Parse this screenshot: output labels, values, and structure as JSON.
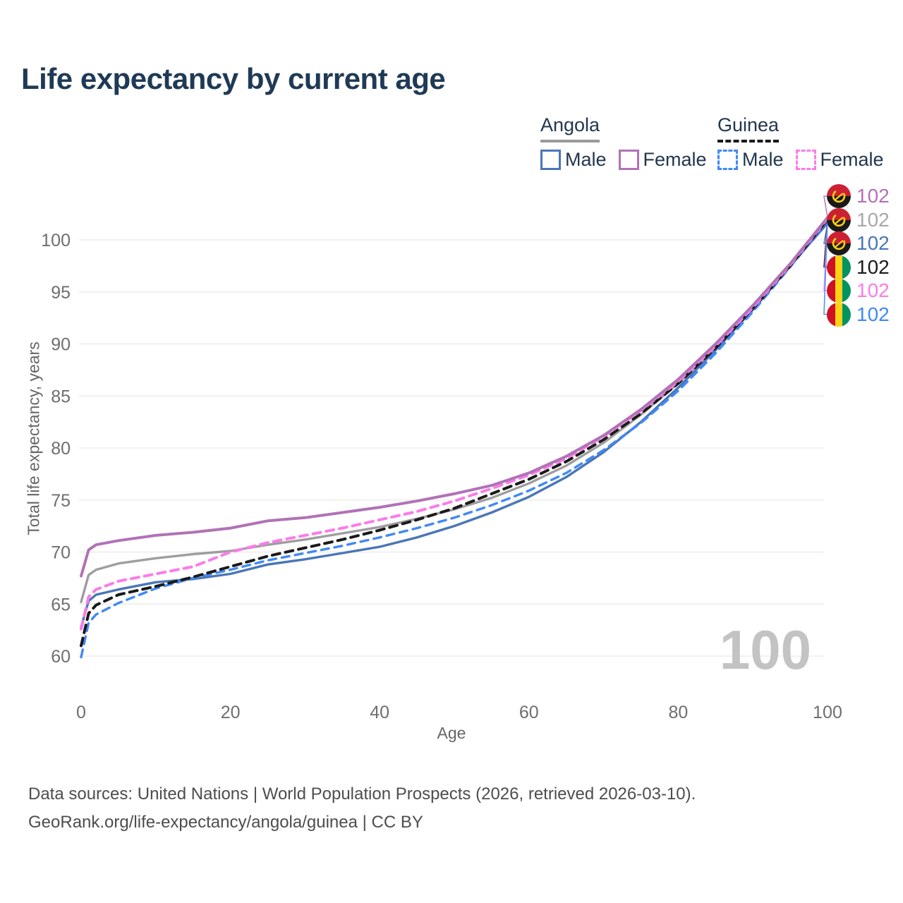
{
  "title": "Life expectancy by current age",
  "legend": {
    "groups": [
      {
        "label": "Angola",
        "line_style": "solid",
        "underline_color": "#9b9b9b",
        "items": [
          {
            "label": "Male",
            "color": "#4a76b8",
            "dashed": false
          },
          {
            "label": "Female",
            "color": "#b172b6",
            "dashed": false
          }
        ]
      },
      {
        "label": "Guinea",
        "line_style": "dashed",
        "underline_color": "#1a1a1a",
        "items": [
          {
            "label": "Male",
            "color": "#4089f7",
            "dashed": true
          },
          {
            "label": "Female",
            "color": "#fb7ce8",
            "dashed": true
          }
        ]
      }
    ]
  },
  "watermark": "100",
  "end_labels": [
    {
      "value": "102",
      "flag": "angola-flag",
      "color": "#b172b6"
    },
    {
      "value": "102",
      "flag": "angola-flag",
      "color": "#a8a8a8"
    },
    {
      "value": "102",
      "flag": "angola-flag",
      "color": "#4a76b8"
    },
    {
      "value": "102",
      "flag": "guinea-flag",
      "color": "#1a1a1a"
    },
    {
      "value": "102",
      "flag": "guinea-flag",
      "color": "#fb7ce8"
    },
    {
      "value": "102",
      "flag": "guinea-flag",
      "color": "#4089f7"
    }
  ],
  "footer": {
    "line1": "Data sources: United Nations | World Population Prospects (2026, retrieved 2026-03-10).",
    "line2": "GeoRank.org/life-expectancy/angola/guinea | CC BY"
  },
  "chart_data": {
    "type": "line",
    "title": "Life expectancy by current age",
    "xlabel": "Age",
    "ylabel": "Total life expectancy, years",
    "xlim": [
      0,
      100
    ],
    "ylim": [
      60,
      102
    ],
    "x_ticks": [
      0,
      20,
      40,
      60,
      80,
      100
    ],
    "y_ticks": [
      60,
      65,
      70,
      75,
      80,
      85,
      90,
      95,
      100
    ],
    "grid": "horizontal",
    "legend_position": "top-right",
    "x": [
      0,
      1,
      2,
      5,
      10,
      15,
      20,
      25,
      30,
      35,
      40,
      45,
      50,
      55,
      60,
      65,
      70,
      75,
      80,
      85,
      90,
      95,
      100
    ],
    "series": [
      {
        "name": "Angola Female",
        "country": "Angola",
        "sex": "Female",
        "color": "#b172b6",
        "dashed": false,
        "width": 4,
        "end_label": "102",
        "values": [
          67.7,
          70.2,
          70.7,
          71.1,
          71.6,
          71.9,
          72.3,
          73.0,
          73.3,
          73.8,
          74.3,
          74.9,
          75.6,
          76.4,
          77.6,
          79.2,
          81.2,
          83.7,
          86.6,
          90.0,
          93.7,
          97.7,
          102.15
        ]
      },
      {
        "name": "Angola Both sexes",
        "country": "Angola",
        "sex": "Both",
        "color": "#9e9e9e",
        "dashed": false,
        "width": 3.4,
        "end_label": "102",
        "values": [
          65.2,
          67.8,
          68.3,
          68.9,
          69.4,
          69.8,
          70.1,
          70.7,
          71.2,
          71.8,
          72.4,
          73.2,
          74.1,
          75.2,
          76.6,
          78.3,
          80.5,
          83.2,
          86.2,
          89.7,
          93.5,
          97.6,
          101.9
        ]
      },
      {
        "name": "Angola Male",
        "country": "Angola",
        "sex": "Male",
        "color": "#4a76b8",
        "dashed": false,
        "width": 3.4,
        "end_label": "102",
        "values": [
          62.8,
          65.3,
          65.9,
          66.4,
          67.1,
          67.4,
          67.9,
          68.8,
          69.3,
          69.9,
          70.5,
          71.4,
          72.5,
          73.8,
          75.3,
          77.2,
          79.6,
          82.5,
          85.8,
          89.4,
          93.3,
          97.5,
          101.6
        ]
      },
      {
        "name": "Guinea Both sexes",
        "country": "Guinea",
        "sex": "Both",
        "color": "#1a1a1a",
        "dashed": true,
        "width": 4,
        "end_label": "102",
        "values": [
          61.0,
          64.1,
          64.9,
          65.9,
          66.7,
          67.6,
          68.6,
          69.6,
          70.4,
          71.2,
          72.1,
          73.1,
          74.2,
          75.6,
          77.0,
          78.7,
          80.8,
          83.3,
          86.2,
          89.6,
          93.4,
          97.5,
          101.95
        ]
      },
      {
        "name": "Guinea Female",
        "country": "Guinea",
        "sex": "Female",
        "color": "#fb7ce8",
        "dashed": true,
        "width": 4,
        "end_label": "102",
        "values": [
          62.6,
          65.7,
          66.4,
          67.2,
          67.9,
          68.6,
          70.0,
          70.9,
          71.6,
          72.3,
          73.1,
          73.9,
          74.9,
          76.1,
          77.4,
          79.0,
          81.1,
          83.6,
          86.4,
          89.8,
          93.5,
          97.6,
          102.05
        ]
      },
      {
        "name": "Guinea Male",
        "country": "Guinea",
        "sex": "Male",
        "color": "#4089f7",
        "dashed": true,
        "width": 3.4,
        "end_label": "102",
        "values": [
          59.9,
          63.2,
          64.0,
          65.1,
          66.5,
          67.5,
          68.3,
          69.2,
          69.9,
          70.6,
          71.4,
          72.3,
          73.3,
          74.5,
          75.9,
          77.6,
          79.8,
          82.4,
          85.5,
          89.1,
          93.1,
          97.4,
          101.75
        ]
      }
    ]
  }
}
